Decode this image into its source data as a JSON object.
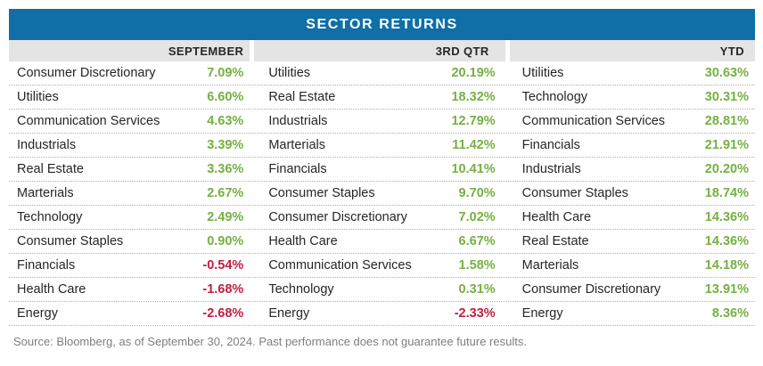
{
  "title": "SECTOR RETURNS",
  "source_note": "Source: Bloomberg, as of September 30, 2024. Past performance does not guarantee future results.",
  "colors": {
    "banner-bg": "#0F6FA6",
    "banner-text": "#FFFFFF",
    "header-bg": "#E4E4E5",
    "positive": "#76B043",
    "negative": "#C11F3D",
    "text": "#262626",
    "source-text": "#7E7E7E",
    "divider": "#ADADAD"
  },
  "columns": [
    {
      "header": "SEPTEMBER",
      "rows": [
        {
          "sector": "Consumer Discretionary",
          "value": "7.09%"
        },
        {
          "sector": "Utilities",
          "value": "6.60%"
        },
        {
          "sector": "Communication Services",
          "value": "4.63%"
        },
        {
          "sector": "Industrials",
          "value": "3.39%"
        },
        {
          "sector": "Real Estate",
          "value": "3.36%"
        },
        {
          "sector": "Marterials",
          "value": "2.67%"
        },
        {
          "sector": "Technology",
          "value": "2.49%"
        },
        {
          "sector": "Consumer Staples",
          "value": "0.90%"
        },
        {
          "sector": "Financials",
          "value": "-0.54%"
        },
        {
          "sector": "Health Care",
          "value": "-1.68%"
        },
        {
          "sector": "Energy",
          "value": "-2.68%"
        }
      ]
    },
    {
      "header": "3RD QTR",
      "rows": [
        {
          "sector": "Utilities",
          "value": "20.19%"
        },
        {
          "sector": "Real Estate",
          "value": "18.32%"
        },
        {
          "sector": "Industrials",
          "value": "12.79%"
        },
        {
          "sector": "Marterials",
          "value": "11.42%"
        },
        {
          "sector": "Financials",
          "value": "10.41%"
        },
        {
          "sector": "Consumer Staples",
          "value": "9.70%"
        },
        {
          "sector": "Consumer Discretionary",
          "value": "7.02%"
        },
        {
          "sector": "Health Care",
          "value": "6.67%"
        },
        {
          "sector": "Communication Services",
          "value": "1.58%"
        },
        {
          "sector": "Technology",
          "value": "0.31%"
        },
        {
          "sector": "Energy",
          "value": "-2.33%"
        }
      ]
    },
    {
      "header": "YTD",
      "rows": [
        {
          "sector": "Utilities",
          "value": "30.63%"
        },
        {
          "sector": "Technology",
          "value": "30.31%"
        },
        {
          "sector": "Communication Services",
          "value": "28.81%"
        },
        {
          "sector": "Financials",
          "value": "21.91%"
        },
        {
          "sector": "Industrials",
          "value": "20.20%"
        },
        {
          "sector": "Consumer Staples",
          "value": "18.74%"
        },
        {
          "sector": "Health Care",
          "value": "14.36%"
        },
        {
          "sector": "Real Estate",
          "value": "14.36%"
        },
        {
          "sector": "Marterials",
          "value": "14.18%"
        },
        {
          "sector": "Consumer Discretionary",
          "value": "13.91%"
        },
        {
          "sector": "Energy",
          "value": "8.36%"
        }
      ]
    }
  ],
  "chart_data": {
    "type": "table",
    "title": "SECTOR RETURNS",
    "columns": [
      "SEPTEMBER",
      "3RD QTR",
      "YTD"
    ],
    "unit": "percent",
    "september": [
      [
        "Consumer Discretionary",
        7.09
      ],
      [
        "Utilities",
        6.6
      ],
      [
        "Communication Services",
        4.63
      ],
      [
        "Industrials",
        3.39
      ],
      [
        "Real Estate",
        3.36
      ],
      [
        "Marterials",
        2.67
      ],
      [
        "Technology",
        2.49
      ],
      [
        "Consumer Staples",
        0.9
      ],
      [
        "Financials",
        -0.54
      ],
      [
        "Health Care",
        -1.68
      ],
      [
        "Energy",
        -2.68
      ]
    ],
    "third_qtr": [
      [
        "Utilities",
        20.19
      ],
      [
        "Real Estate",
        18.32
      ],
      [
        "Industrials",
        12.79
      ],
      [
        "Marterials",
        11.42
      ],
      [
        "Financials",
        10.41
      ],
      [
        "Consumer Staples",
        9.7
      ],
      [
        "Consumer Discretionary",
        7.02
      ],
      [
        "Health Care",
        6.67
      ],
      [
        "Communication Services",
        1.58
      ],
      [
        "Technology",
        0.31
      ],
      [
        "Energy",
        -2.33
      ]
    ],
    "ytd": [
      [
        "Utilities",
        30.63
      ],
      [
        "Technology",
        30.31
      ],
      [
        "Communication Services",
        28.81
      ],
      [
        "Financials",
        21.91
      ],
      [
        "Industrials",
        20.2
      ],
      [
        "Consumer Staples",
        18.74
      ],
      [
        "Health Care",
        14.36
      ],
      [
        "Real Estate",
        14.36
      ],
      [
        "Marterials",
        14.18
      ],
      [
        "Consumer Discretionary",
        13.91
      ],
      [
        "Energy",
        8.36
      ]
    ],
    "value_color_rule": "positive=green #76B043, negative=red #C11F3D",
    "source_note": "Source: Bloomberg, as of September 30, 2024. Past performance does not guarantee future results."
  }
}
